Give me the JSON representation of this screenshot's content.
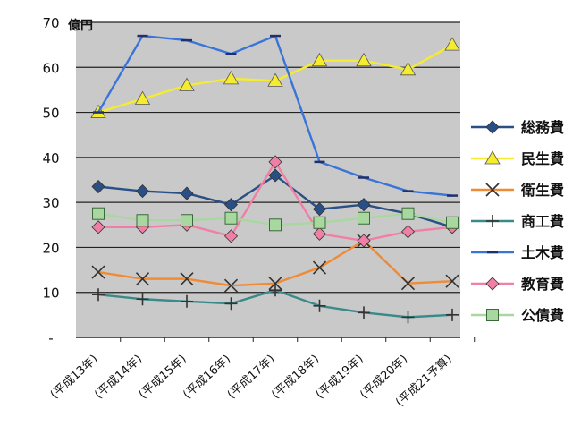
{
  "chart_data": {
    "type": "line",
    "title": "",
    "unit": "億円",
    "xlabel": "",
    "ylabel": "",
    "ylim": [
      0,
      70
    ],
    "yticks": [
      0,
      10,
      20,
      30,
      40,
      50,
      60,
      70
    ],
    "ytick_labels": [
      "-",
      "10",
      "20",
      "30",
      "40",
      "50",
      "60",
      "70"
    ],
    "grid": true,
    "legend_position": "right",
    "categories": [
      "(平成13年)",
      "(平成14年)",
      "(平成15年)",
      "(平成16年)",
      "(平成17年)",
      "(平成18年)",
      "(平成19年)",
      "(平成20年)",
      "(平成21予算)"
    ],
    "series": [
      {
        "name": "総務費",
        "color": "#2a4f86",
        "marker": "diamond",
        "values": [
          33.5,
          32.5,
          32.0,
          29.5,
          36.0,
          28.5,
          29.5,
          27.5,
          24.5
        ]
      },
      {
        "name": "民生費",
        "color": "#f5ec2f",
        "marker": "triangle",
        "values": [
          50.0,
          53.0,
          56.0,
          57.5,
          57.0,
          61.5,
          61.5,
          59.5,
          65.0
        ]
      },
      {
        "name": "衛生費",
        "color": "#f08a35",
        "marker": "x",
        "values": [
          14.5,
          13.0,
          13.0,
          11.5,
          12.0,
          15.5,
          21.5,
          12.0,
          12.5
        ]
      },
      {
        "name": "商工費",
        "color": "#3a8a8a",
        "marker": "plus",
        "values": [
          9.5,
          8.5,
          8.0,
          7.5,
          10.5,
          7.0,
          5.5,
          4.5,
          5.0
        ]
      },
      {
        "name": "土木費",
        "color": "#3a74d8",
        "marker": "dash",
        "values": [
          50.0,
          67.0,
          66.0,
          63.0,
          67.0,
          39.0,
          35.5,
          32.5,
          31.5
        ]
      },
      {
        "name": "教育費",
        "color": "#f07fa6",
        "marker": "diamond",
        "values": [
          24.5,
          24.5,
          25.0,
          22.5,
          39.0,
          23.0,
          21.5,
          23.5,
          24.5
        ]
      },
      {
        "name": "公債費",
        "color": "#a8d8a0",
        "marker": "square",
        "values": [
          27.5,
          26.0,
          26.0,
          26.5,
          25.0,
          25.5,
          26.5,
          27.5,
          25.5
        ]
      }
    ]
  }
}
